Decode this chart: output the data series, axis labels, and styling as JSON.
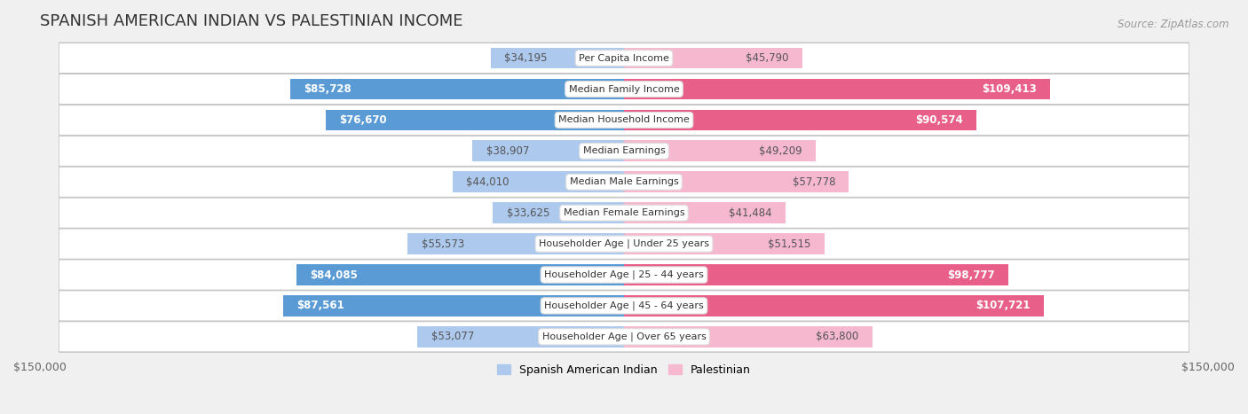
{
  "title": "SPANISH AMERICAN INDIAN VS PALESTINIAN INCOME",
  "source": "Source: ZipAtlas.com",
  "categories": [
    "Per Capita Income",
    "Median Family Income",
    "Median Household Income",
    "Median Earnings",
    "Median Male Earnings",
    "Median Female Earnings",
    "Householder Age | Under 25 years",
    "Householder Age | 25 - 44 years",
    "Householder Age | 45 - 64 years",
    "Householder Age | Over 65 years"
  ],
  "left_values": [
    34195,
    85728,
    76670,
    38907,
    44010,
    33625,
    55573,
    84085,
    87561,
    53077
  ],
  "right_values": [
    45790,
    109413,
    90574,
    49209,
    57778,
    41484,
    51515,
    98777,
    107721,
    63800
  ],
  "left_label": "Spanish American Indian",
  "right_label": "Palestinian",
  "left_color_light": "#aec9ee",
  "left_color_dark": "#5b9bd5",
  "right_color_light": "#f5b8ce",
  "right_color_dark": "#e8608a",
  "max_val": 150000,
  "left_dark": [
    false,
    true,
    true,
    false,
    false,
    false,
    false,
    true,
    true,
    false
  ],
  "right_dark": [
    false,
    true,
    true,
    false,
    false,
    false,
    false,
    true,
    true,
    false
  ],
  "left_label_values": [
    "$34,195",
    "$85,728",
    "$76,670",
    "$38,907",
    "$44,010",
    "$33,625",
    "$55,573",
    "$84,085",
    "$87,561",
    "$53,077"
  ],
  "right_label_values": [
    "$45,790",
    "$109,413",
    "$90,574",
    "$49,209",
    "$57,778",
    "$41,484",
    "$51,515",
    "$98,777",
    "$107,721",
    "$63,800"
  ],
  "right_white_text": [
    false,
    true,
    true,
    false,
    false,
    false,
    false,
    true,
    true,
    false
  ],
  "background_color": "#f0f0f0",
  "bar_bg_color": "#ffffff",
  "title_fontsize": 13,
  "label_fontsize": 8,
  "value_fontsize": 8.5
}
